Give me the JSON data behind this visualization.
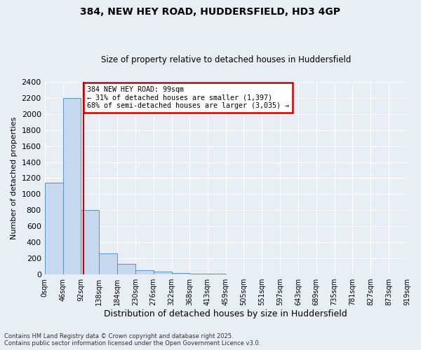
{
  "title1": "384, NEW HEY ROAD, HUDDERSFIELD, HD3 4GP",
  "title2": "Size of property relative to detached houses in Huddersfield",
  "xlabel": "Distribution of detached houses by size in Huddersfield",
  "ylabel": "Number of detached properties",
  "bin_edges": [
    0,
    46,
    92,
    138,
    184,
    230,
    276,
    322,
    368,
    413,
    459,
    505,
    551,
    597,
    643,
    689,
    735,
    781,
    827,
    873,
    919
  ],
  "bin_counts": [
    1140,
    2200,
    800,
    260,
    130,
    55,
    35,
    20,
    12,
    8,
    5,
    3,
    2,
    1,
    1,
    0,
    0,
    0,
    0,
    0
  ],
  "bar_color": "#c5d8ee",
  "bar_edge_color": "#5b8fc9",
  "property_size": 99,
  "vline_color": "#cc0000",
  "annotation_text": "384 NEW HEY ROAD: 99sqm\n← 31% of detached houses are smaller (1,397)\n68% of semi-detached houses are larger (3,035) →",
  "annotation_box_color": "#cc0000",
  "ylim": [
    0,
    2400
  ],
  "yticks": [
    0,
    200,
    400,
    600,
    800,
    1000,
    1200,
    1400,
    1600,
    1800,
    2000,
    2200,
    2400
  ],
  "footer_line1": "Contains HM Land Registry data © Crown copyright and database right 2025.",
  "footer_line2": "Contains public sector information licensed under the Open Government Licence v3.0.",
  "background_color": "#e8eef5",
  "grid_color": "#ffffff"
}
